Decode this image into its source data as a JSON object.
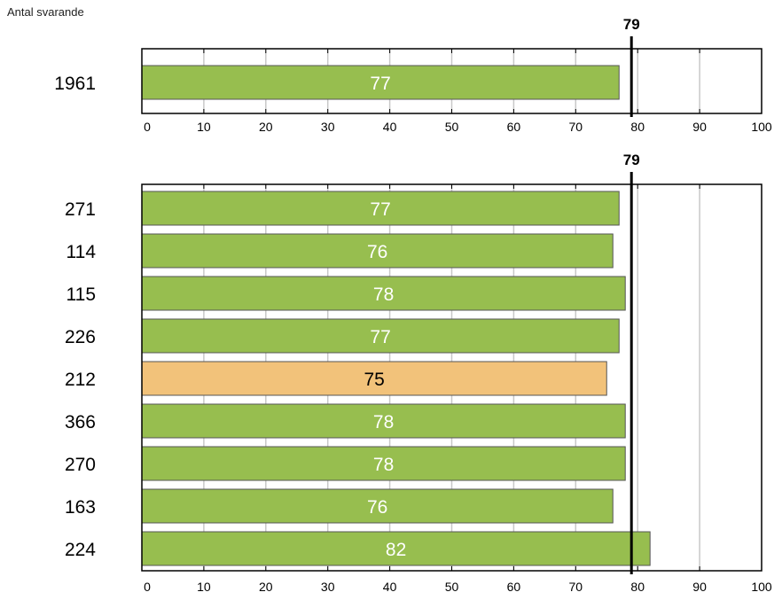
{
  "header": {
    "respondents_label": "Antal svarande"
  },
  "chart_data": [
    {
      "type": "bar",
      "orientation": "horizontal",
      "categories": [
        "1961"
      ],
      "values": [
        77
      ],
      "value_labels": [
        "77"
      ],
      "bar_colors": [
        "#97be4f"
      ],
      "reference_line": {
        "value": 79,
        "label": "79"
      },
      "xlim": [
        0,
        100
      ],
      "xticks": [
        "0",
        "10",
        "20",
        "30",
        "40",
        "50",
        "60",
        "70",
        "80",
        "90",
        "100"
      ],
      "grid": true
    },
    {
      "type": "bar",
      "orientation": "horizontal",
      "categories": [
        "271",
        "114",
        "115",
        "226",
        "212",
        "366",
        "270",
        "163",
        "224"
      ],
      "values": [
        77,
        76,
        78,
        77,
        75,
        78,
        78,
        76,
        82
      ],
      "value_labels": [
        "77",
        "76",
        "78",
        "77",
        "75",
        "78",
        "78",
        "76",
        "82"
      ],
      "bar_colors": [
        "#97be4f",
        "#97be4f",
        "#97be4f",
        "#97be4f",
        "#f2c27a",
        "#97be4f",
        "#97be4f",
        "#97be4f",
        "#97be4f"
      ],
      "label_colors": [
        "#ffffff",
        "#ffffff",
        "#ffffff",
        "#ffffff",
        "#000000",
        "#ffffff",
        "#ffffff",
        "#ffffff",
        "#ffffff"
      ],
      "reference_line": {
        "value": 79,
        "label": "79"
      },
      "xlim": [
        0,
        100
      ],
      "xticks": [
        "0",
        "10",
        "20",
        "30",
        "40",
        "50",
        "60",
        "70",
        "80",
        "90",
        "100"
      ],
      "grid": true
    }
  ],
  "colors": {
    "bar_stroke": "#555555",
    "grid": "#c8c8c8",
    "frame": "#000000"
  }
}
